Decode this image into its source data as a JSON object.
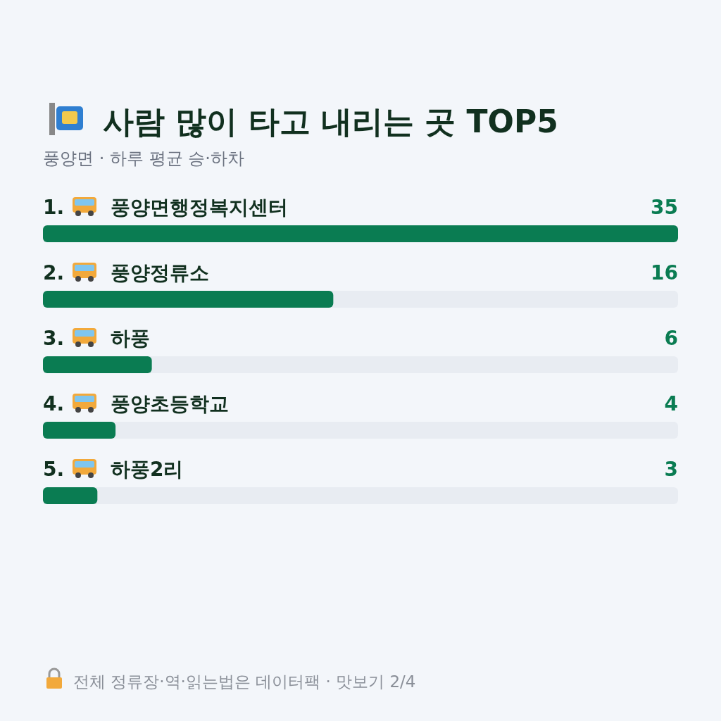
{
  "chart_data": {
    "type": "bar",
    "orientation": "horizontal",
    "title": "사람 많이 타고 내리는 곳 TOP5",
    "subtitle": "풍양면 · 하루 평균 승·하차",
    "categories": [
      "1. 풍양면행정복지센터",
      "2. 풍양정류소",
      "3. 하풍",
      "4. 풍양초등학교",
      "5. 하풍2리"
    ],
    "values": [
      35,
      16,
      6,
      4,
      3
    ],
    "color": "#0a7c52",
    "xlim": [
      0,
      35
    ],
    "data_labels": true,
    "tick_labels": false,
    "annotations": [
      "전체 정류장·역·읽는법은 데이터팩 · 맛보기 2/4"
    ]
  }
}
